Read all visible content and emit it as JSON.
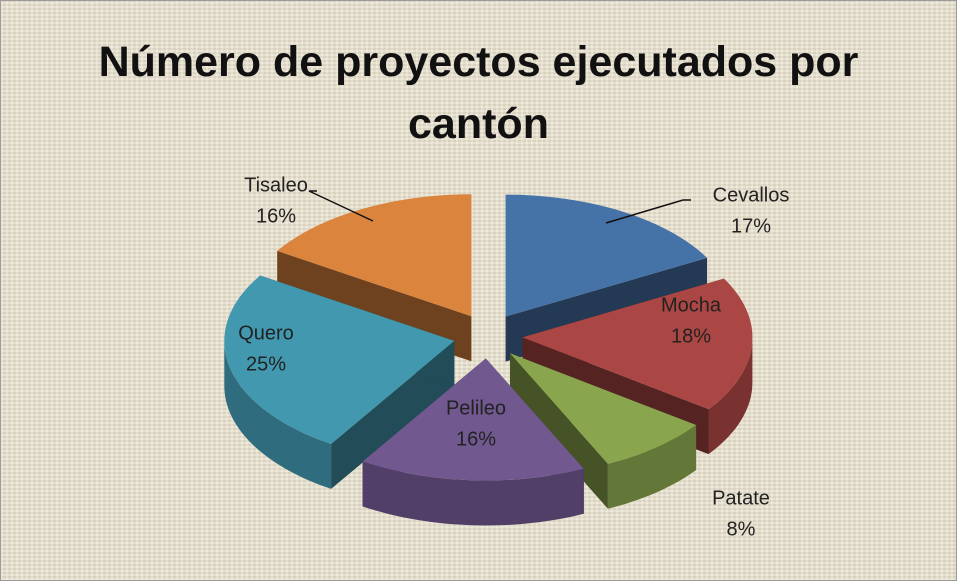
{
  "chart_data": {
    "type": "pie",
    "title": "Número de proyectos ejecutados por cantón",
    "categories": [
      "Cevallos",
      "Mocha",
      "Patate",
      "Pelileo",
      "Quero",
      "Tisaleo"
    ],
    "values": [
      17,
      18,
      8,
      16,
      25,
      16
    ],
    "value_labels": [
      "17%",
      "18%",
      "8%",
      "16%",
      "25%",
      "16%"
    ],
    "colors": [
      "#4572a7",
      "#aa4643",
      "#89a54e",
      "#71588f",
      "#4198af",
      "#db843d"
    ]
  }
}
